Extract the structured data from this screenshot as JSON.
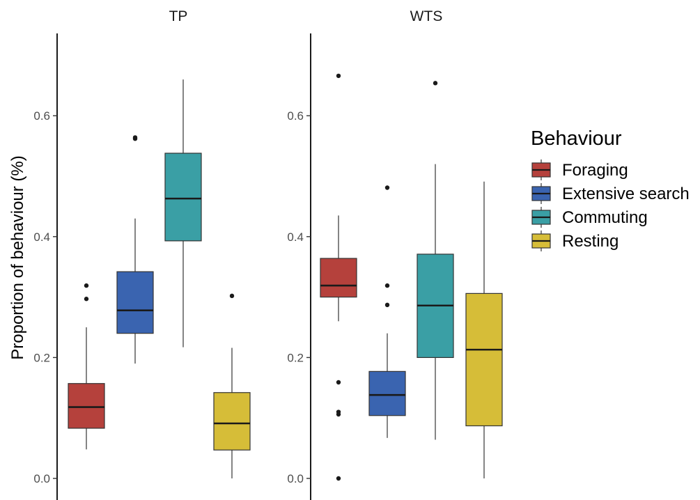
{
  "chart_data": {
    "type": "boxplot",
    "ylabel": "Proportion of behaviour (%)",
    "ylim": [
      0,
      0.72
    ],
    "y_ticks": [
      0.0,
      0.2,
      0.4,
      0.6
    ],
    "y_tick_labels": [
      "0.0",
      "0.2",
      "0.4",
      "0.6"
    ],
    "grid": false,
    "legend": {
      "title": "Behaviour",
      "position": "right",
      "entries": [
        {
          "label": "Foraging",
          "color": "#B5413C"
        },
        {
          "label": "Extensive search",
          "color": "#3A64B0"
        },
        {
          "label": "Commuting",
          "color": "#3A9FA5"
        },
        {
          "label": "Resting",
          "color": "#D6BD38"
        }
      ]
    },
    "categories": [
      "Foraging",
      "Extensive search",
      "Commuting",
      "Resting"
    ],
    "panels": [
      {
        "title": "TP",
        "boxes": [
          {
            "category": "Foraging",
            "whisker_low": 0.048,
            "q1": 0.083,
            "median": 0.118,
            "q3": 0.157,
            "whisker_high": 0.25,
            "outliers": [
              0.297,
              0.319
            ]
          },
          {
            "category": "Extensive search",
            "whisker_low": 0.19,
            "q1": 0.24,
            "median": 0.278,
            "q3": 0.342,
            "whisker_high": 0.43,
            "outliers": [
              0.562,
              0.564
            ]
          },
          {
            "category": "Commuting",
            "whisker_low": 0.217,
            "q1": 0.393,
            "median": 0.463,
            "q3": 0.538,
            "whisker_high": 0.66,
            "outliers": []
          },
          {
            "category": "Resting",
            "whisker_low": 0.0,
            "q1": 0.047,
            "median": 0.091,
            "q3": 0.142,
            "whisker_high": 0.216,
            "outliers": [
              0.302
            ]
          }
        ]
      },
      {
        "title": "WTS",
        "boxes": [
          {
            "category": "Foraging",
            "whisker_low": 0.26,
            "q1": 0.3,
            "median": 0.319,
            "q3": 0.364,
            "whisker_high": 0.435,
            "outliers": [
              0.0,
              0.106,
              0.11,
              0.159,
              0.666
            ]
          },
          {
            "category": "Extensive search",
            "whisker_low": 0.067,
            "q1": 0.104,
            "median": 0.138,
            "q3": 0.177,
            "whisker_high": 0.24,
            "outliers": [
              0.287,
              0.319,
              0.481
            ]
          },
          {
            "category": "Commuting",
            "whisker_low": 0.064,
            "q1": 0.2,
            "median": 0.286,
            "q3": 0.371,
            "whisker_high": 0.52,
            "outliers": [
              0.654
            ]
          },
          {
            "category": "Resting",
            "whisker_low": 0.0,
            "q1": 0.087,
            "median": 0.213,
            "q3": 0.306,
            "whisker_high": 0.491,
            "outliers": []
          }
        ]
      }
    ]
  }
}
